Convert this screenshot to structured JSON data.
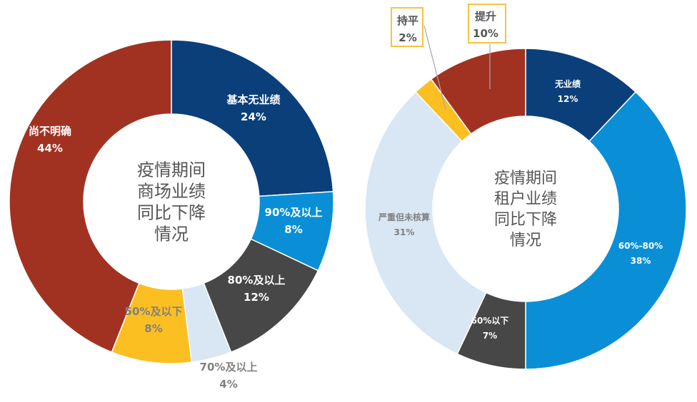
{
  "colors": {
    "navy": "#0a3f7a",
    "blue": "#0a8fd6",
    "dark_gray": "#474747",
    "light_blue": "#d9e7f4",
    "yellow": "#fbbf22",
    "red": "#a13222",
    "white_text": "#ffffff",
    "gray_text": "#808080",
    "callout_border": "#f6c244"
  },
  "chart_data": [
    {
      "type": "pie",
      "donut": true,
      "center_title": [
        "疫情期间",
        "商场业绩",
        "同比下降",
        "情况"
      ],
      "slices": [
        {
          "label": "基本无业绩",
          "value": 24,
          "display": "24%",
          "color": "#0a3f7a",
          "text_color": "#ffffff"
        },
        {
          "label": "90%及以上",
          "value": 8,
          "display": "8%",
          "color": "#0a8fd6",
          "text_color": "#ffffff"
        },
        {
          "label": "80%及以上",
          "value": 12,
          "display": "12%",
          "color": "#474747",
          "text_color": "#ffffff"
        },
        {
          "label": "70%及以上",
          "value": 4,
          "display": "4%",
          "color": "#d9e7f4",
          "text_color": "#808080"
        },
        {
          "label": "50%及以下",
          "value": 8,
          "display": "8%",
          "color": "#fbbf22",
          "text_color": "#808080"
        },
        {
          "label": "尚不明确",
          "value": 44,
          "display": "44%",
          "color": "#a13222",
          "text_color": "#ffffff"
        }
      ]
    },
    {
      "type": "pie",
      "donut": true,
      "center_title": [
        "疫情期间",
        "租户业绩",
        "同比下降",
        "情况"
      ],
      "slices": [
        {
          "label": "无业绩",
          "value": 12,
          "display": "12%",
          "color": "#0a3f7a",
          "text_color": "#ffffff"
        },
        {
          "label": "60%-80%",
          "value": 38,
          "display": "38%",
          "color": "#0a8fd6",
          "text_color": "#ffffff"
        },
        {
          "label": "60%以下",
          "value": 7,
          "display": "7%",
          "color": "#474747",
          "text_color": "#ffffff"
        },
        {
          "label": "严重但未核算",
          "value": 31,
          "display": "31%",
          "color": "#d9e7f4",
          "text_color": "#808080"
        },
        {
          "label": "持平",
          "value": 2,
          "display": "2%",
          "color": "#fbbf22",
          "text_color": "#555555",
          "callout": true
        },
        {
          "label": "提升",
          "value": 10,
          "display": "10%",
          "color": "#a13222",
          "text_color": "#555555",
          "callout": true
        }
      ]
    }
  ]
}
